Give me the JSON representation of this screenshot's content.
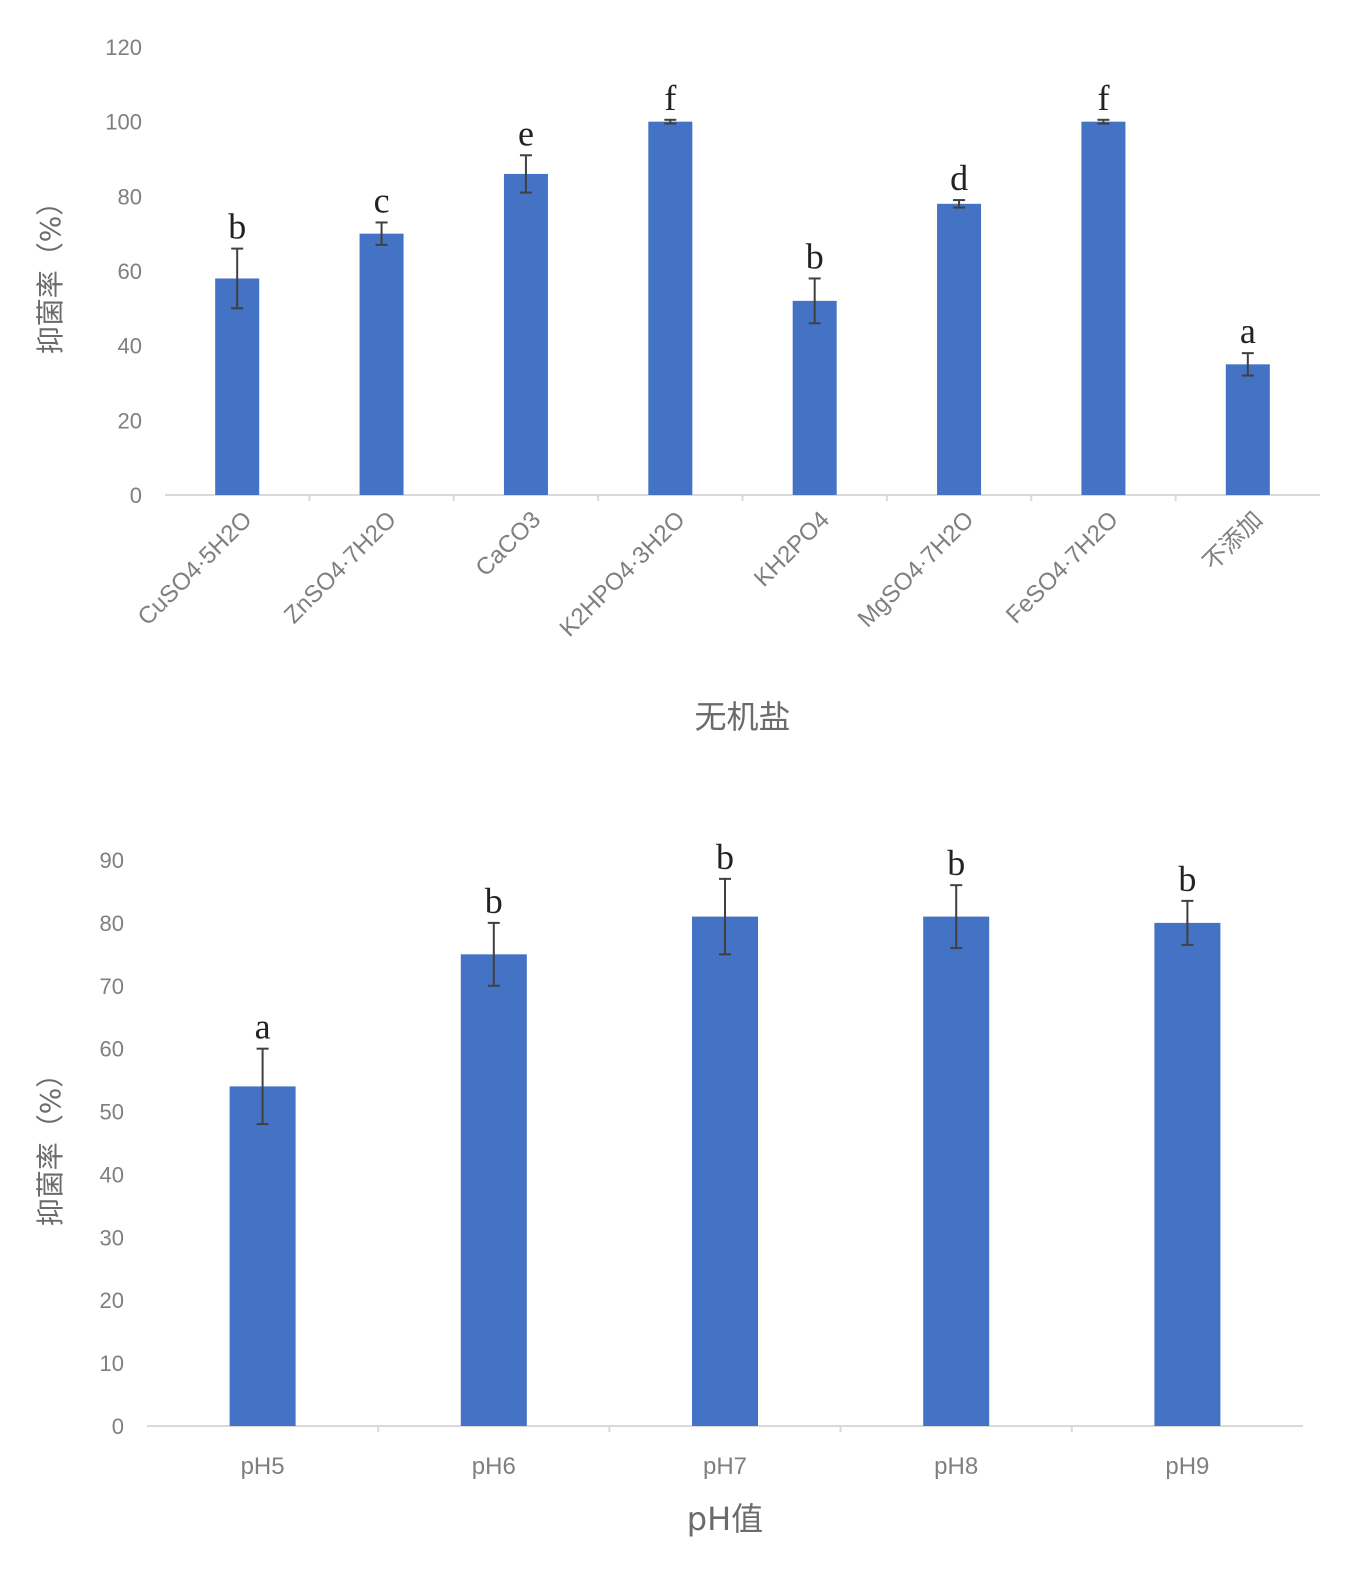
{
  "chart_data": [
    {
      "type": "bar",
      "categories": [
        "CuSO4·5H2O",
        "ZnSO4·7H2O",
        "CaCO3",
        "K2HPO4·3H2O",
        "KH2PO4",
        "MgSO4·7H2O",
        "FeSO4·7H2O",
        "不添加"
      ],
      "values": [
        58,
        70,
        86,
        100,
        52,
        78,
        100,
        35
      ],
      "errors": [
        8,
        3,
        5,
        0.5,
        6,
        1,
        0.5,
        3
      ],
      "significance": [
        "b",
        "c",
        "e",
        "f",
        "b",
        "d",
        "f",
        "a"
      ],
      "ylim": [
        0,
        120
      ],
      "yticks": [
        0,
        20,
        40,
        60,
        80,
        100,
        120
      ],
      "xlabel": "无机盐",
      "ylabel": "抑菌率（%）",
      "color": "#4472c4",
      "grid": false
    },
    {
      "type": "bar",
      "categories": [
        "pH5",
        "pH6",
        "pH7",
        "pH8",
        "pH9"
      ],
      "values": [
        54,
        75,
        81,
        81,
        80
      ],
      "errors": [
        6,
        5,
        6,
        5,
        3.5
      ],
      "significance": [
        "a",
        "b",
        "b",
        "b",
        "b"
      ],
      "ylim": [
        0,
        90
      ],
      "yticks": [
        0,
        10,
        20,
        30,
        40,
        50,
        60,
        70,
        80,
        90
      ],
      "xlabel": "pH值",
      "ylabel": "抑菌率（%）",
      "color": "#4472c4",
      "grid": false
    }
  ]
}
